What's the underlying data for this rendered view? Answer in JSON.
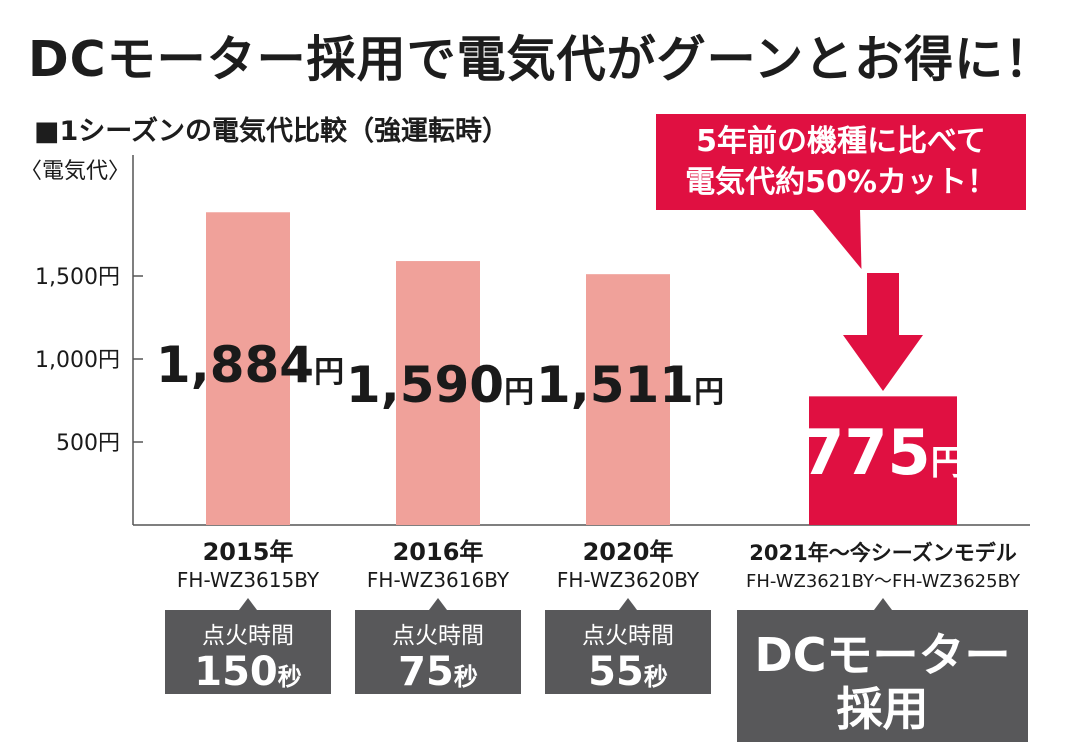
{
  "headline": "DCモーター採用で電気代がグーンとお得に！",
  "subheading": "■1シーズンの電気代比較（強運転時）",
  "callout": {
    "line1": "5年前の機種に比べて",
    "line2": "電気代約50%カット！"
  },
  "colors": {
    "old_bar": "#f0a19a",
    "new_bar": "#e01041",
    "box": "#58585a",
    "axis": "#555555"
  },
  "chart_data": {
    "type": "bar",
    "ylabel": "〈電気代〉",
    "ylim": [
      0,
      2100
    ],
    "yticks": [
      {
        "value": 500,
        "label": "500円"
      },
      {
        "value": 1000,
        "label": "1,000円"
      },
      {
        "value": 1500,
        "label": "1,500円"
      }
    ],
    "grid": false,
    "categories": [
      {
        "year": "2015年",
        "model": "FH-WZ3615BY"
      },
      {
        "year": "2016年",
        "model": "FH-WZ3616BY"
      },
      {
        "year": "2020年",
        "model": "FH-WZ3620BY"
      },
      {
        "year": "2021年～今シーズンモデル",
        "model": "FH-WZ3621BY～FH-WZ3625BY"
      }
    ],
    "values": [
      1884,
      1590,
      1511,
      775
    ],
    "value_labels": [
      {
        "number": "1,884",
        "unit": "円"
      },
      {
        "number": "1,590",
        "unit": "円"
      },
      {
        "number": "1,511",
        "unit": "円"
      },
      {
        "number": "775",
        "unit": "円"
      }
    ],
    "highlight_index": 3
  },
  "ignition": [
    {
      "label": "点火時間",
      "number": "150",
      "unit": "秒"
    },
    {
      "label": "点火時間",
      "number": "75",
      "unit": "秒"
    },
    {
      "label": "点火時間",
      "number": "55",
      "unit": "秒"
    }
  ],
  "dc_box": {
    "line1": "DCモーター",
    "line2": "採用"
  }
}
